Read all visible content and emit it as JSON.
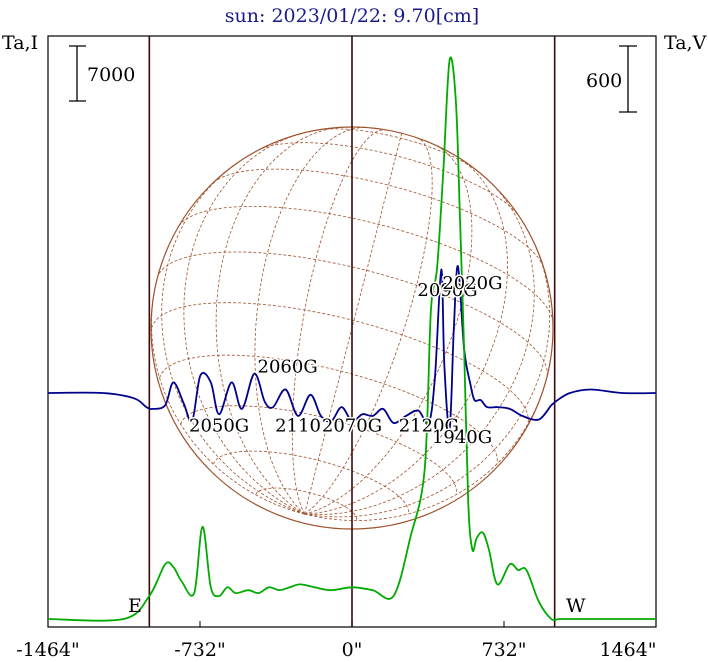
{
  "chart_data": {
    "type": "line",
    "title": "sun: 2023/01/22: 9.70[cm]",
    "ylabel_left": "Ta,I",
    "ylabel_right": "Ta,V",
    "scale_left": "7000",
    "scale_right": "600",
    "x_ticks": [
      "-1464\"",
      "-732\"",
      "0\"",
      "732\"",
      "1464\""
    ],
    "x_range": [
      -1464,
      1464
    ],
    "disk_radius_arcsec": 976,
    "limb_markers": [
      "E",
      "W"
    ],
    "vertical_lines_arcsec": [
      -976,
      0,
      976
    ],
    "colors": {
      "stokes_i": "#00008b",
      "stokes_v": "#00aa00",
      "disk": "#a0522d",
      "axes": "#3a0a0a"
    },
    "series": [
      {
        "name": "Ta,I",
        "color": "#00008b",
        "x": [
          -1464,
          -1200,
          -1050,
          -990,
          -960,
          -900,
          -860,
          -810,
          -770,
          -730,
          -680,
          -640,
          -580,
          -530,
          -470,
          -420,
          -380,
          -320,
          -260,
          -200,
          -150,
          -100,
          -50,
          0,
          50,
          100,
          150,
          200,
          260,
          320,
          370,
          400,
          430,
          445,
          470,
          490,
          510,
          540,
          570,
          590,
          620,
          650,
          700,
          760,
          820,
          900,
          960,
          990,
          1050,
          1150,
          1300,
          1464
        ],
        "y": [
          0,
          0,
          -300,
          -800,
          -900,
          -700,
          600,
          -600,
          -1600,
          1000,
          600,
          -1200,
          600,
          -900,
          1100,
          -500,
          -800,
          200,
          -1300,
          -100,
          -1300,
          -1600,
          -800,
          -1600,
          -1200,
          -1300,
          -900,
          -1700,
          -1300,
          -1000,
          -1700,
          1000,
          7000,
          1500,
          -2000,
          3500,
          7200,
          2500,
          500,
          -400,
          -400,
          -800,
          -800,
          -900,
          -1300,
          -1500,
          -700,
          -400,
          0,
          200,
          0,
          0
        ]
      },
      {
        "name": "Ta,V",
        "color": "#00aa00",
        "x": [
          -1464,
          -1100,
          -976,
          -900,
          -860,
          -820,
          -760,
          -720,
          -680,
          -640,
          -600,
          -560,
          -500,
          -450,
          -400,
          -350,
          -300,
          -250,
          -180,
          -100,
          0,
          100,
          200,
          280,
          350,
          380,
          410,
          440,
          470,
          500,
          520,
          540,
          560,
          580,
          600,
          630,
          660,
          700,
          760,
          800,
          840,
          900,
          960,
          1000,
          1100,
          1300,
          1464
        ],
        "y": [
          0,
          0,
          80,
          190,
          180,
          130,
          90,
          320,
          110,
          80,
          110,
          90,
          100,
          90,
          110,
          100,
          110,
          120,
          110,
          100,
          110,
          100,
          80,
          280,
          520,
          1070,
          1220,
          1560,
          1940,
          1800,
          1390,
          940,
          400,
          240,
          280,
          300,
          240,
          120,
          190,
          170,
          170,
          60,
          0,
          0,
          0,
          0,
          0
        ]
      }
    ],
    "annotations": [
      {
        "text": "2060G",
        "x": -310,
        "y": 1500
      },
      {
        "text": "2050G",
        "x": -640,
        "y": -1850
      },
      {
        "text": "2110",
        "x": -260,
        "y": -1850
      },
      {
        "text": "2070G",
        "x": 0,
        "y": -1850
      },
      {
        "text": "2120G",
        "x": 370,
        "y": -1850
      },
      {
        "text": "2090G",
        "x": 460,
        "y": 5850
      },
      {
        "text": "2020G",
        "x": 580,
        "y": 6250
      },
      {
        "text": "1940G",
        "x": 530,
        "y": -2500
      }
    ]
  }
}
